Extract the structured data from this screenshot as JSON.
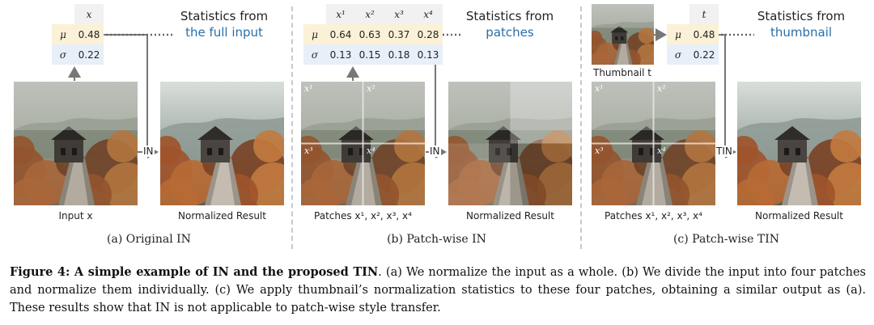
{
  "panels": [
    {
      "table": {
        "headers": [
          "x"
        ],
        "mu": [
          "0.48"
        ],
        "sigma": [
          "0.22"
        ]
      },
      "stats_line1": "Statistics from",
      "stats_line2": "the full input",
      "input_caption": "Input x",
      "arrow_label": "IN",
      "output_caption": "Normalized Result",
      "subcaption": "(a) Original IN"
    },
    {
      "table": {
        "headers": [
          "x¹",
          "x²",
          "x³",
          "x⁴"
        ],
        "mu": [
          "0.64",
          "0.63",
          "0.37",
          "0.28"
        ],
        "sigma": [
          "0.13",
          "0.15",
          "0.18",
          "0.13"
        ]
      },
      "stats_line1": "Statistics from",
      "stats_line2": "patches",
      "input_caption": "Patches x¹, x², x³, x⁴",
      "arrow_label": "IN",
      "output_caption": "Normalized Result",
      "subcaption": "(b) Patch-wise IN",
      "patch_labels": [
        "x¹",
        "x²",
        "x³",
        "x⁴"
      ]
    },
    {
      "table": {
        "headers": [
          "t"
        ],
        "mu": [
          "0.48"
        ],
        "sigma": [
          "0.22"
        ]
      },
      "stats_line1": "Statistics from",
      "stats_line2": "thumbnail",
      "thumbnail_caption": "Thumbnail t",
      "input_caption": "Patches x¹, x², x³, x⁴",
      "arrow_label": "TIN",
      "output_caption": "Normalized Result",
      "subcaption": "(c) Patch-wise TIN",
      "patch_labels": [
        "x¹",
        "x²",
        "x³",
        "x⁴"
      ]
    }
  ],
  "symbols": {
    "mu": "μ",
    "sigma": "σ"
  },
  "caption": {
    "bold": "Figure 4: A simple example of IN and the proposed TIN",
    "text": ". (a) We normalize the input as a whole. (b) We divide the input into four patches and normalize them individually. (c) We apply thumbnail’s normalization statistics to these four patches, obtaining a similar output as (a). These results show that IN is not applicable to patch-wise style transfer."
  },
  "colors": {
    "accent": "#2a6fa8",
    "mu_row": "#fbf1d6",
    "sigma_row": "#e7eff8"
  }
}
